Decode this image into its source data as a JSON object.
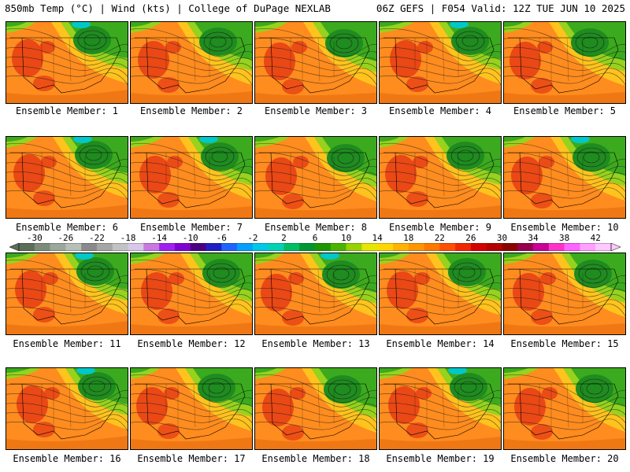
{
  "header": {
    "left": "850mb Temp (°C) | Wind (kts) | College of DuPage NEXLAB",
    "right": "06Z GEFS | F054 Valid: 12Z TUE JUN 10 2025"
  },
  "panel_label_prefix": "Ensemble Member: ",
  "members": [
    {
      "label": "Ensemble Member: 1"
    },
    {
      "label": "Ensemble Member: 2"
    },
    {
      "label": "Ensemble Member: 3"
    },
    {
      "label": "Ensemble Member: 4"
    },
    {
      "label": "Ensemble Member: 5"
    },
    {
      "label": "Ensemble Member: 6"
    },
    {
      "label": "Ensemble Member: 7"
    },
    {
      "label": "Ensemble Member: 8"
    },
    {
      "label": "Ensemble Member: 9"
    },
    {
      "label": "Ensemble Member: 10"
    },
    {
      "label": "Ensemble Member: 11"
    },
    {
      "label": "Ensemble Member: 12"
    },
    {
      "label": "Ensemble Member: 13"
    },
    {
      "label": "Ensemble Member: 14"
    },
    {
      "label": "Ensemble Member: 15"
    },
    {
      "label": "Ensemble Member: 16"
    },
    {
      "label": "Ensemble Member: 17"
    },
    {
      "label": "Ensemble Member: 18"
    },
    {
      "label": "Ensemble Member: 19"
    },
    {
      "label": "Ensemble Member: 20"
    }
  ],
  "colorbar": {
    "labels": [
      "-30",
      "-26",
      "-22",
      "-18",
      "-14",
      "-10",
      "-6",
      "-2",
      "2",
      "6",
      "10",
      "14",
      "18",
      "22",
      "26",
      "30",
      "34",
      "38",
      "42"
    ],
    "colors": [
      "#5a6e5a",
      "#7b8c7b",
      "#9aa79a",
      "#b6c0b6",
      "#8a8a8a",
      "#a6a6a6",
      "#c2c2c2",
      "#d8c8e8",
      "#c878e0",
      "#a020f0",
      "#8000d0",
      "#4b0082",
      "#2020c0",
      "#1e64ff",
      "#00a0ff",
      "#00c8e6",
      "#00d2b4",
      "#00be64",
      "#009632",
      "#1e9600",
      "#4bb400",
      "#96d200",
      "#e6e600",
      "#ffd700",
      "#ffb400",
      "#ff9600",
      "#ff7800",
      "#ff5000",
      "#f02800",
      "#d20000",
      "#b40000",
      "#8c0000",
      "#960050",
      "#c80096",
      "#ff32c8",
      "#ff64ff",
      "#ffa0ff",
      "#ffc8ff"
    ],
    "min": -32,
    "max": 44
  },
  "colors": {
    "warm_core": "#e63c14",
    "warm": "#ff8c1e",
    "mild": "#ffc31e",
    "cool": "#96d21e",
    "cold": "#3caa1e",
    "colder": "#1e8c1e",
    "frigid": "#00c8c8"
  }
}
